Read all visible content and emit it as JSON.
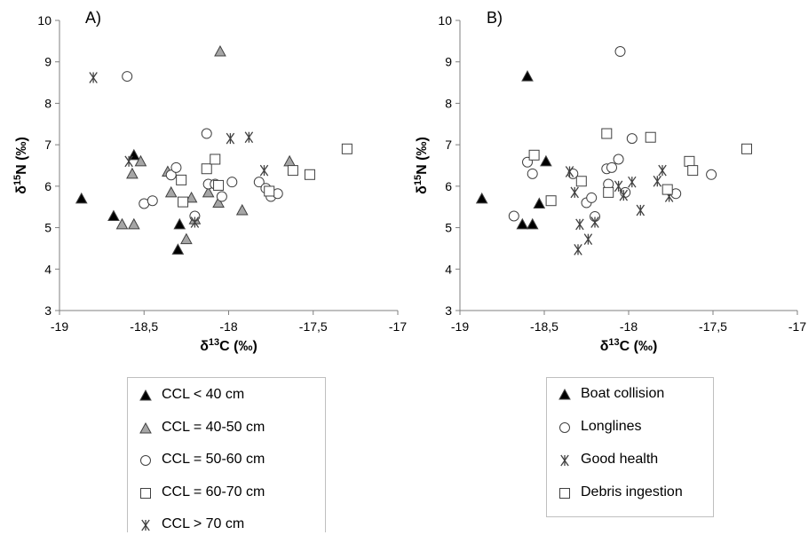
{
  "chart_data": [
    {
      "type": "scatter",
      "panel_label": "A)",
      "xlabel_prefix": "δ",
      "xlabel_sup": "13",
      "xlabel_suffix": "C (‰)",
      "ylabel_prefix": "δ",
      "ylabel_sup": "15",
      "ylabel_suffix": "N (‰)",
      "xlim": [
        -19,
        -17
      ],
      "ylim": [
        3,
        10
      ],
      "xticks": [
        -19,
        -18.5,
        -18,
        -17.5,
        -17
      ],
      "xtick_labels": [
        "-19",
        "-18,5",
        "-18",
        "-17,5",
        "-17"
      ],
      "yticks": [
        3,
        4,
        5,
        6,
        7,
        8,
        9,
        10
      ],
      "ytick_labels": [
        "3",
        "4",
        "5",
        "6",
        "7",
        "8",
        "9",
        "10"
      ],
      "legend_position": "below",
      "series": [
        {
          "name": "CCL < 40 cm",
          "marker": "triangle-black",
          "points": [
            [
              -18.87,
              5.7
            ],
            [
              -18.68,
              5.28
            ],
            [
              -18.56,
              6.75
            ],
            [
              -18.3,
              4.47
            ],
            [
              -18.29,
              5.08
            ]
          ]
        },
        {
          "name": "CCL = 40-50 cm",
          "marker": "triangle-gray",
          "points": [
            [
              -18.63,
              5.08
            ],
            [
              -18.56,
              5.08
            ],
            [
              -18.57,
              6.3
            ],
            [
              -18.52,
              6.6
            ],
            [
              -18.36,
              6.35
            ],
            [
              -18.34,
              5.85
            ],
            [
              -18.25,
              4.72
            ],
            [
              -18.22,
              5.72
            ],
            [
              -18.2,
              5.2
            ],
            [
              -18.12,
              5.85
            ],
            [
              -18.06,
              5.6
            ],
            [
              -18.05,
              9.25
            ],
            [
              -17.92,
              5.42
            ],
            [
              -17.64,
              6.6
            ]
          ]
        },
        {
          "name": "CCL = 50-60 cm",
          "marker": "circle-open",
          "points": [
            [
              -18.6,
              8.65
            ],
            [
              -18.5,
              5.58
            ],
            [
              -18.45,
              5.65
            ],
            [
              -18.34,
              6.27
            ],
            [
              -18.31,
              6.45
            ],
            [
              -18.2,
              5.28
            ],
            [
              -18.13,
              7.27
            ],
            [
              -18.12,
              6.05
            ],
            [
              -18.08,
              6.05
            ],
            [
              -18.04,
              5.75
            ],
            [
              -17.98,
              6.1
            ],
            [
              -17.82,
              6.1
            ],
            [
              -17.78,
              5.95
            ],
            [
              -17.75,
              5.75
            ],
            [
              -17.71,
              5.82
            ]
          ]
        },
        {
          "name": "CCL = 60-70 cm",
          "marker": "square-open",
          "points": [
            [
              -18.28,
              6.15
            ],
            [
              -18.27,
              5.62
            ],
            [
              -18.13,
              6.42
            ],
            [
              -18.08,
              6.65
            ],
            [
              -18.06,
              6.02
            ],
            [
              -17.76,
              5.88
            ],
            [
              -17.62,
              6.38
            ],
            [
              -17.52,
              6.28
            ],
            [
              -17.3,
              6.9
            ]
          ]
        },
        {
          "name": "CCL > 70 cm",
          "marker": "asterisk",
          "points": [
            [
              -18.8,
              8.62
            ],
            [
              -18.59,
              6.6
            ],
            [
              -18.2,
              5.13
            ],
            [
              -17.99,
              7.15
            ],
            [
              -17.88,
              7.18
            ],
            [
              -17.79,
              6.38
            ]
          ]
        }
      ]
    },
    {
      "type": "scatter",
      "panel_label": "B)",
      "xlabel_prefix": "δ",
      "xlabel_sup": "13",
      "xlabel_suffix": "C (‰)",
      "ylabel_prefix": "δ",
      "ylabel_sup": "15",
      "ylabel_suffix": "N (‰)",
      "xlim": [
        -19,
        -17
      ],
      "ylim": [
        3,
        10
      ],
      "xticks": [
        -19,
        -18.5,
        -18,
        -17.5,
        -17
      ],
      "xtick_labels": [
        "-19",
        "-18,5",
        "-18",
        "-17,5",
        "-17"
      ],
      "yticks": [
        3,
        4,
        5,
        6,
        7,
        8,
        9,
        10
      ],
      "ytick_labels": [
        "3",
        "4",
        "5",
        "6",
        "7",
        "8",
        "9",
        "10"
      ],
      "legend_position": "below",
      "series": [
        {
          "name": "Boat collision",
          "marker": "triangle-black",
          "points": [
            [
              -18.87,
              5.7
            ],
            [
              -18.63,
              5.08
            ],
            [
              -18.6,
              8.65
            ],
            [
              -18.57,
              5.08
            ],
            [
              -18.53,
              5.58
            ],
            [
              -18.49,
              6.6
            ]
          ]
        },
        {
          "name": "Longlines",
          "marker": "circle-open",
          "points": [
            [
              -18.68,
              5.28
            ],
            [
              -18.6,
              6.58
            ],
            [
              -18.57,
              6.3
            ],
            [
              -18.33,
              6.3
            ],
            [
              -18.25,
              5.6
            ],
            [
              -18.22,
              5.72
            ],
            [
              -18.2,
              5.27
            ],
            [
              -18.13,
              6.42
            ],
            [
              -18.12,
              6.05
            ],
            [
              -18.1,
              6.45
            ],
            [
              -18.06,
              6.65
            ],
            [
              -18.05,
              9.25
            ],
            [
              -18.02,
              5.85
            ],
            [
              -17.98,
              7.15
            ],
            [
              -17.72,
              5.82
            ],
            [
              -17.51,
              6.28
            ]
          ]
        },
        {
          "name": "Good health",
          "marker": "asterisk",
          "points": [
            [
              -18.35,
              6.35
            ],
            [
              -18.32,
              5.85
            ],
            [
              -18.3,
              4.47
            ],
            [
              -18.29,
              5.08
            ],
            [
              -18.24,
              4.72
            ],
            [
              -18.2,
              5.13
            ],
            [
              -18.06,
              6.0
            ],
            [
              -18.03,
              5.78
            ],
            [
              -17.98,
              6.1
            ],
            [
              -17.93,
              5.42
            ],
            [
              -17.83,
              6.12
            ],
            [
              -17.8,
              6.38
            ],
            [
              -17.76,
              5.75
            ]
          ]
        },
        {
          "name": "Debris ingestion",
          "marker": "square-open",
          "points": [
            [
              -18.56,
              6.75
            ],
            [
              -18.46,
              5.65
            ],
            [
              -18.28,
              6.12
            ],
            [
              -18.13,
              7.27
            ],
            [
              -18.12,
              5.85
            ],
            [
              -17.87,
              7.18
            ],
            [
              -17.77,
              5.92
            ],
            [
              -17.64,
              6.6
            ],
            [
              -17.62,
              6.38
            ],
            [
              -17.3,
              6.9
            ]
          ]
        }
      ]
    }
  ]
}
